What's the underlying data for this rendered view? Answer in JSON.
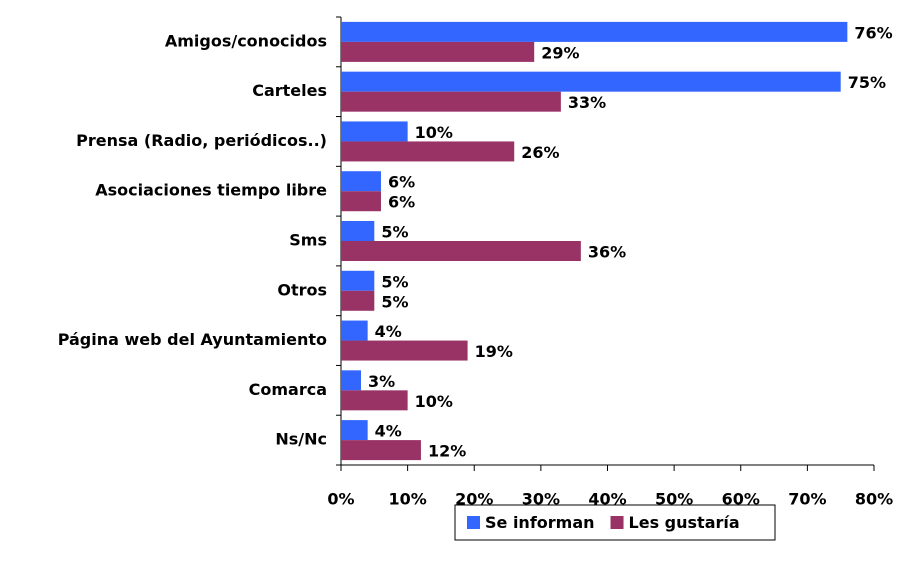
{
  "chart_data": {
    "type": "hbar",
    "categories": [
      "Amigos/conocidos",
      "Carteles",
      "Prensa (Radio, periódicos..)",
      "Asociaciones tiempo libre",
      "Sms",
      "Otros",
      "Página web del Ayuntamiento",
      "Comarca",
      "Ns/Nc"
    ],
    "series": [
      {
        "name": "Se informan",
        "color": "#3366ff",
        "values": [
          76,
          75,
          10,
          6,
          5,
          5,
          4,
          3,
          4
        ],
        "value_labels": [
          "76%",
          "75%",
          "10%",
          "6%",
          "5%",
          "5%",
          "4%",
          "3%",
          "4%"
        ]
      },
      {
        "name": "Les gustaría",
        "color": "#993366",
        "values": [
          29,
          33,
          26,
          6,
          36,
          5,
          19,
          10,
          12
        ],
        "value_labels": [
          "29%",
          "33%",
          "26%",
          "6%",
          "36%",
          "5%",
          "19%",
          "10%",
          "12%"
        ]
      }
    ],
    "xlim": [
      0,
      80
    ],
    "xticks": [
      {
        "value": 0,
        "label": "0%"
      },
      {
        "value": 10,
        "label": "10%"
      },
      {
        "value": 20,
        "label": "20%"
      },
      {
        "value": 30,
        "label": "30%"
      },
      {
        "value": 40,
        "label": "40%"
      },
      {
        "value": 50,
        "label": "50%"
      },
      {
        "value": 60,
        "label": "60%"
      },
      {
        "value": 70,
        "label": "70%"
      },
      {
        "value": 80,
        "label": "80%"
      }
    ],
    "legend": "bottom"
  }
}
